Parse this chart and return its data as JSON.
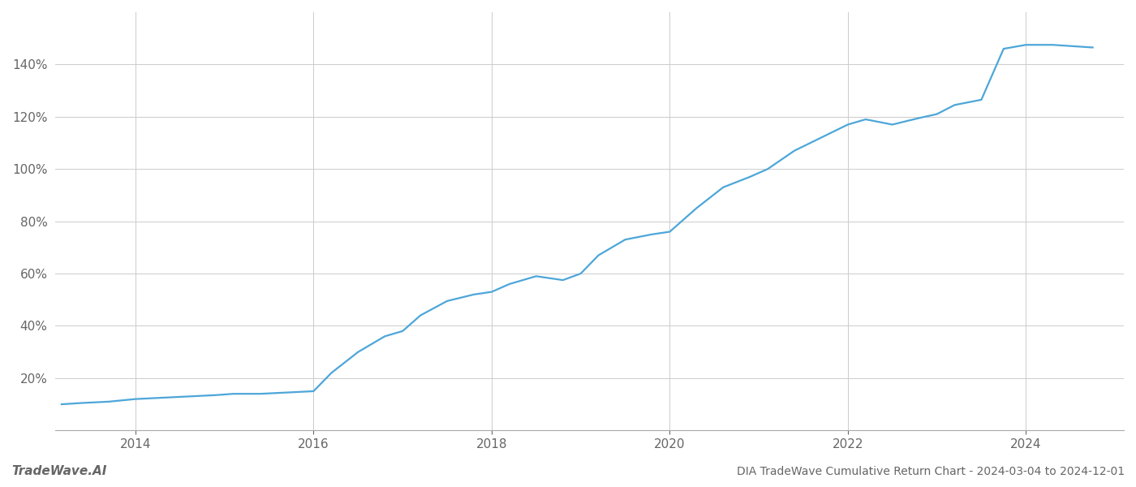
{
  "title": "DIA TradeWave Cumulative Return Chart - 2024-03-04 to 2024-12-01",
  "watermark": "TradeWave.AI",
  "line_color": "#4da6d9",
  "background_color": "#ffffff",
  "grid_color": "#cccccc",
  "text_color": "#666666",
  "x_points": [
    2013.17,
    2013.4,
    2013.7,
    2014.0,
    2014.3,
    2014.6,
    2014.9,
    2015.1,
    2015.4,
    2015.7,
    2016.0,
    2016.2,
    2016.5,
    2016.8,
    2017.0,
    2017.2,
    2017.5,
    2017.8,
    2018.0,
    2018.2,
    2018.5,
    2018.8,
    2019.0,
    2019.2,
    2019.5,
    2019.8,
    2020.0,
    2020.3,
    2020.6,
    2020.9,
    2021.1,
    2021.4,
    2021.7,
    2022.0,
    2022.2,
    2022.5,
    2022.8,
    2023.0,
    2023.2,
    2023.5,
    2023.75,
    2024.0,
    2024.3,
    2024.75
  ],
  "y_points": [
    10.0,
    10.5,
    11.0,
    12.0,
    12.5,
    13.0,
    13.5,
    14.0,
    14.0,
    14.5,
    15.0,
    22.0,
    30.0,
    36.0,
    38.0,
    44.0,
    49.5,
    52.0,
    53.0,
    56.0,
    59.0,
    57.5,
    60.0,
    67.0,
    73.0,
    75.0,
    76.0,
    85.0,
    93.0,
    97.0,
    100.0,
    107.0,
    112.0,
    117.0,
    119.0,
    117.0,
    119.5,
    121.0,
    124.5,
    126.5,
    146.0,
    147.5,
    147.5,
    146.5
  ],
  "ylim": [
    0,
    160
  ],
  "yticks": [
    20,
    40,
    60,
    80,
    100,
    120,
    140
  ],
  "xlim": [
    2013.1,
    2025.1
  ],
  "xticks": [
    2014,
    2016,
    2018,
    2020,
    2022,
    2024
  ],
  "title_fontsize": 10,
  "watermark_fontsize": 11,
  "tick_fontsize": 11,
  "line_width": 1.6
}
